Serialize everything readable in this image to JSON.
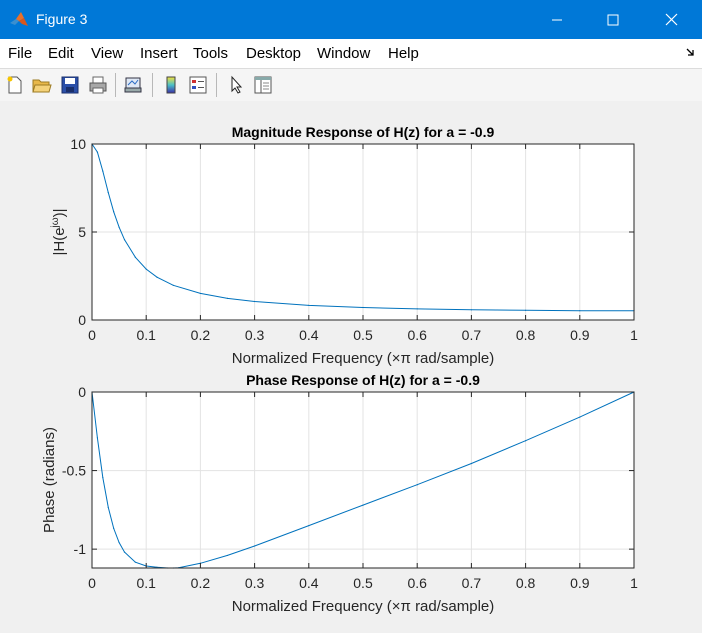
{
  "window": {
    "title": "Figure 3",
    "accent": "#0078d7"
  },
  "menu": {
    "items": [
      "File",
      "Edit",
      "View",
      "Insert",
      "Tools",
      "Desktop",
      "Window",
      "Help"
    ]
  },
  "toolbar": {
    "icons": [
      "new-figure-icon",
      "open-file-icon",
      "save-icon",
      "print-icon",
      "link-plot-icon",
      "colorbar-icon",
      "legend-icon",
      "pointer-icon",
      "property-inspector-icon"
    ]
  },
  "plot_color": "#0072bd",
  "chart_data": [
    {
      "type": "line",
      "title": "Magnitude Response of H(z) for a = -0.9",
      "xlabel": "Normalized Frequency (×π rad/sample)",
      "ylabel": "|H(e^{jω})|",
      "ylabel_main": "|H(e",
      "ylabel_sup": "jω",
      "ylabel_end": ")|",
      "xlim": [
        0,
        1
      ],
      "ylim": [
        0,
        10
      ],
      "xticks": [
        "0",
        "0.1",
        "0.2",
        "0.3",
        "0.4",
        "0.5",
        "0.6",
        "0.7",
        "0.8",
        "0.9",
        "1"
      ],
      "yticks": [
        "0",
        "5",
        "10"
      ],
      "grid": true,
      "series": [
        {
          "x": [
            0,
            0.01,
            0.02,
            0.03,
            0.04,
            0.05,
            0.06,
            0.08,
            0.1,
            0.12,
            0.15,
            0.2,
            0.25,
            0.3,
            0.4,
            0.5,
            0.6,
            0.7,
            0.8,
            0.9,
            1.0
          ],
          "values": [
            10.0,
            9.54,
            8.46,
            7.24,
            6.15,
            5.27,
            4.56,
            3.56,
            2.89,
            2.43,
            1.97,
            1.51,
            1.23,
            1.05,
            0.83,
            0.71,
            0.63,
            0.58,
            0.55,
            0.53,
            0.53
          ]
        }
      ]
    },
    {
      "type": "line",
      "title": "Phase Response of H(z) for a = -0.9",
      "xlabel": "Normalized Frequency (×π rad/sample)",
      "ylabel": "Phase (radians)",
      "xlim": [
        0,
        1
      ],
      "ylim": [
        -1.12,
        0
      ],
      "xticks": [
        "0",
        "0.1",
        "0.2",
        "0.3",
        "0.4",
        "0.5",
        "0.6",
        "0.7",
        "0.8",
        "0.9",
        "1"
      ],
      "yticks": [
        "0",
        "-0.5",
        "-1"
      ],
      "grid": true,
      "series": [
        {
          "x": [
            0,
            0.01,
            0.02,
            0.03,
            0.04,
            0.05,
            0.06,
            0.08,
            0.1,
            0.12,
            0.14,
            0.15,
            0.16,
            0.2,
            0.25,
            0.3,
            0.4,
            0.5,
            0.6,
            0.7,
            0.8,
            0.9,
            1.0
          ],
          "values": [
            0,
            -0.292,
            -0.544,
            -0.735,
            -0.868,
            -0.958,
            -1.019,
            -1.083,
            -1.107,
            -1.115,
            -1.12,
            -1.12,
            -1.118,
            -1.09,
            -1.04,
            -0.98,
            -0.85,
            -0.72,
            -0.59,
            -0.455,
            -0.31,
            -0.16,
            0
          ]
        }
      ]
    }
  ]
}
